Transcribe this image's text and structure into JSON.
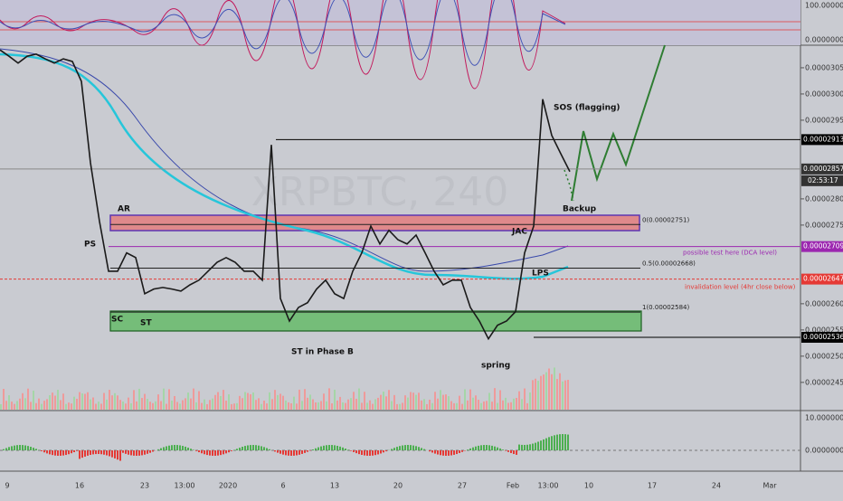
{
  "chart_data": {
    "type": "line",
    "watermark": "XRPBTC, 240",
    "x": [
      "9",
      "16",
      "23",
      "13:00",
      "2020",
      "6",
      "13",
      "20",
      "27",
      "Feb",
      "13:00",
      "10",
      "17",
      "24",
      "Mar"
    ],
    "price": [
      3.084e-05,
      3.072e-05,
      3.059e-05,
      3.072e-05,
      3.076e-05,
      3.067e-05,
      3.059e-05,
      3.067e-05,
      3.062e-05,
      3.024e-05,
      2.869e-05,
      2.757e-05,
      2.662e-05,
      2.662e-05,
      2.697e-05,
      2.688e-05,
      2.619e-05,
      2.628e-05,
      2.631e-05,
      2.628e-05,
      2.624e-05,
      2.636e-05,
      2.645e-05,
      2.662e-05,
      2.679e-05,
      2.688e-05,
      2.679e-05,
      2.662e-05,
      2.662e-05,
      2.645e-05,
      2.903e-05,
      2.61e-05,
      2.567e-05,
      2.593e-05,
      2.602e-05,
      2.628e-05,
      2.645e-05,
      2.619e-05,
      2.61e-05,
      2.662e-05,
      2.697e-05,
      2.748e-05,
      2.714e-05,
      2.74e-05,
      2.722e-05,
      2.714e-05,
      2.731e-05,
      2.697e-05,
      2.662e-05,
      2.636e-05,
      2.645e-05,
      2.645e-05,
      2.593e-05,
      2.567e-05,
      2.533e-05,
      2.559e-05,
      2.567e-05,
      2.585e-05,
      2.697e-05,
      2.748e-05,
      2.99e-05,
      2.921e-05,
      2.886e-05,
      2.852e-05
    ],
    "color": "#1a1a1a",
    "ylim": [
      2.398e-05,
      3.093e-05
    ],
    "yticks": [
      {
        "value": 3.05e-05,
        "label": "0.00003050"
      },
      {
        "value": 3e-05,
        "label": "0.00003000"
      },
      {
        "value": 2.95e-05,
        "label": "0.00002950"
      },
      {
        "value": 2.8e-05,
        "label": "0.00002800"
      },
      {
        "value": 2.75e-05,
        "label": "0.00002750"
      },
      {
        "value": 2.6e-05,
        "label": "0.00002600"
      },
      {
        "value": 2.55e-05,
        "label": "0.00002550"
      },
      {
        "value": 2.5e-05,
        "label": "0.00002500"
      },
      {
        "value": 2.45e-05,
        "label": "0.00002450"
      }
    ],
    "price_tags": [
      {
        "value": 2.913e-05,
        "label": "0.00002913",
        "color": "#000000"
      },
      {
        "value": 2.857e-05,
        "label": "0.00002857",
        "color": "#333333"
      },
      {
        "value": 2.709e-05,
        "label": "0.00002709",
        "color": "#9c27b0"
      },
      {
        "value": 2.647e-05,
        "label": "0.00002647",
        "color": "#e53935"
      },
      {
        "value": 2.536e-05,
        "label": "0.00002536",
        "color": "#000000"
      }
    ],
    "countdown": "02:53:17",
    "fib_levels": [
      {
        "value": 2.751e-05,
        "label": "0(0.00002751)"
      },
      {
        "value": 2.668e-05,
        "label": "0.5(0.00002668)"
      },
      {
        "value": 2.584e-05,
        "label": "1(0.00002584)"
      }
    ],
    "annotations": [
      "AR",
      "PS",
      "SC",
      "ST",
      "ST in Phase B",
      "spring",
      "JAC",
      "LPS",
      "SOS (flagging)",
      "Backup"
    ],
    "dca_note": "possible test here (DCA level)",
    "invalidation_note": "invalidation level (4hr close below)",
    "rsi_ticks": [
      "100.00000000",
      "0.00000000"
    ],
    "osc_ticks": [
      "10.00000000",
      "0.00000000"
    ]
  }
}
